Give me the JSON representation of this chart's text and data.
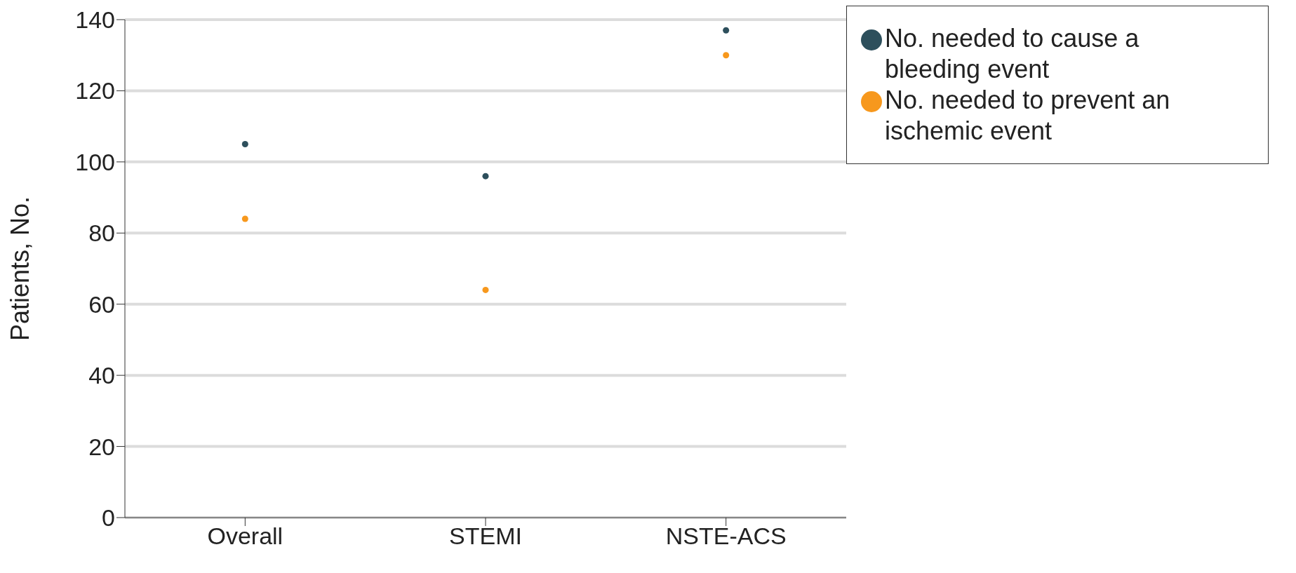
{
  "chart_data": {
    "type": "scatter",
    "ylabel": "Patients, No.",
    "categories": [
      "Overall",
      "STEMI",
      "NSTE-ACS"
    ],
    "series": [
      {
        "name": "No. needed to cause a bleeding event",
        "color": "#2d4f5c",
        "values": [
          105,
          96,
          137
        ]
      },
      {
        "name": "No. needed to prevent an ischemic event",
        "color": "#f7981d",
        "values": [
          84,
          64,
          130
        ]
      }
    ],
    "ylim": [
      0,
      140
    ],
    "yticks": [
      0,
      20,
      40,
      60,
      80,
      100,
      120,
      140
    ],
    "grid": "y",
    "legend": "top right",
    "marker": "circle"
  }
}
